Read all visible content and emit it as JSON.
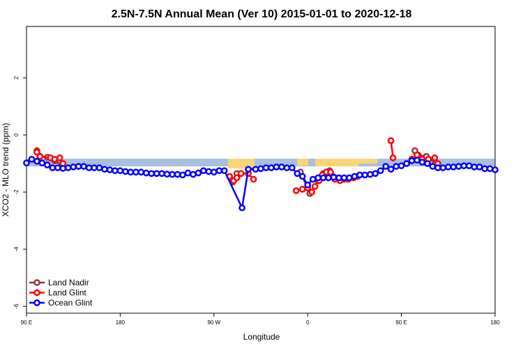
{
  "chart_data": {
    "type": "line",
    "title": "2.5N-7.5N Annual Mean (Ver 10)   2015-01-01 to 2020-12-18",
    "x_label": "Longitude",
    "y_label": "XCO2 - MLO trend (ppm)",
    "xlim": [
      90,
      540
    ],
    "ylim": [
      -6.24,
      3.8
    ],
    "xticks": [
      {
        "value": 90,
        "label": "90 E"
      },
      {
        "value": 180,
        "label": "180"
      },
      {
        "value": 270,
        "label": "90 W"
      },
      {
        "value": 360,
        "label": "0"
      },
      {
        "value": 450,
        "label": "90 E"
      },
      {
        "value": 540,
        "label": "180"
      }
    ],
    "yticks": [
      -6,
      -4,
      -2,
      0,
      2
    ],
    "legend": "bottom-left",
    "series": [
      {
        "name": "Land Nadir",
        "color": "#993333",
        "x": [
          100,
          103,
          110,
          117,
          124,
          126,
          288,
          292,
          294,
          353,
          362,
          370,
          375,
          381,
          390,
          392,
          463,
          466,
          474,
          483
        ],
        "values": [
          -0.55,
          -0.75,
          -0.78,
          -0.9,
          -1.05,
          null,
          -1.65,
          -1.35,
          null,
          -1.3,
          -2.05,
          -1.6,
          -1.35,
          -1.25,
          -1.5,
          null,
          -0.55,
          -0.7,
          -0.75,
          -1.0
        ]
      },
      {
        "name": "Land Glint",
        "color": "#ff0000",
        "x": [
          100,
          103,
          113,
          117,
          122,
          125,
          127,
          285,
          289,
          292,
          296,
          303,
          308,
          310,
          349,
          355,
          360,
          364,
          367,
          371,
          374,
          378,
          382,
          386,
          391,
          395,
          399,
          404,
          408,
          420,
          440,
          442,
          444,
          460,
          465,
          470,
          476,
          482,
          485
        ],
        "values": [
          -0.6,
          -0.75,
          -0.8,
          -0.85,
          -0.8,
          -1.0,
          null,
          -1.45,
          -1.6,
          -1.5,
          -1.35,
          -1.35,
          -1.55,
          null,
          -1.95,
          -1.9,
          -1.85,
          -2.0,
          -1.8,
          -1.6,
          -1.4,
          -1.3,
          -1.3,
          -1.55,
          -1.6,
          -1.55,
          -1.55,
          -1.5,
          -1.45,
          null,
          -0.2,
          -0.8,
          null,
          -0.85,
          -0.7,
          -0.85,
          -0.85,
          -0.8,
          -1.0
        ]
      },
      {
        "name": "Ocean Glint",
        "color": "#0000ff",
        "x": [
          90,
          95,
          100,
          105,
          110,
          115,
          120,
          125,
          130,
          135,
          140,
          145,
          150,
          155,
          160,
          165,
          170,
          175,
          180,
          185,
          190,
          195,
          200,
          205,
          210,
          215,
          220,
          225,
          230,
          235,
          240,
          245,
          250,
          255,
          260,
          265,
          270,
          275,
          280,
          297,
          303,
          310,
          315,
          320,
          325,
          330,
          335,
          340,
          345,
          350,
          355,
          360,
          365,
          370,
          375,
          380,
          385,
          390,
          395,
          400,
          405,
          410,
          415,
          420,
          425,
          430,
          435,
          440,
          445,
          450,
          455,
          460,
          465,
          470,
          475,
          480,
          485,
          490,
          495,
          500,
          505,
          510,
          515,
          520,
          525,
          530,
          535,
          540
        ],
        "values": [
          -0.98,
          -0.85,
          -0.92,
          -0.98,
          -1.05,
          -1.15,
          -1.15,
          -1.17,
          -1.15,
          -1.12,
          -1.1,
          -1.1,
          -1.15,
          -1.15,
          -1.15,
          -1.2,
          -1.22,
          -1.25,
          -1.25,
          -1.28,
          -1.3,
          -1.3,
          -1.3,
          -1.33,
          -1.35,
          -1.35,
          -1.35,
          -1.37,
          -1.38,
          -1.38,
          -1.4,
          -1.33,
          -1.38,
          -1.33,
          -1.25,
          -1.28,
          -1.3,
          -1.25,
          -1.25,
          -2.55,
          -1.2,
          -1.2,
          -1.18,
          -1.15,
          -1.15,
          -1.12,
          -1.12,
          -1.15,
          -1.15,
          -1.35,
          -1.45,
          -1.75,
          -1.55,
          -1.5,
          -1.5,
          -1.5,
          -1.48,
          -1.5,
          -1.5,
          -1.5,
          -1.45,
          -1.4,
          -1.4,
          -1.38,
          -1.35,
          -1.25,
          -1.1,
          -1.2,
          -1.1,
          -1.08,
          -1.0,
          -0.9,
          -0.88,
          -0.95,
          -1.0,
          -1.1,
          -1.15,
          -1.15,
          -1.12,
          -1.12,
          -1.1,
          -1.08,
          -1.08,
          -1.12,
          -1.12,
          -1.18,
          -1.18,
          -1.22
        ]
      }
    ]
  }
}
